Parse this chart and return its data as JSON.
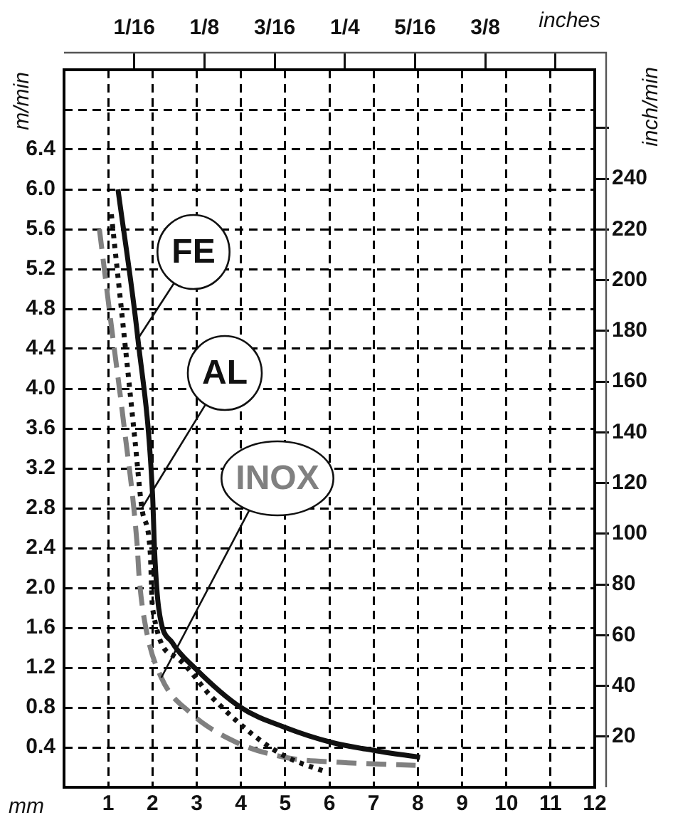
{
  "chart_data": {
    "type": "line",
    "xlabel": "mm",
    "ylabel": "m/min",
    "y2label": "inch/min",
    "x2label": "inches",
    "xlim": [
      0,
      12
    ],
    "xticks": [
      1,
      2,
      3,
      4,
      5,
      6,
      7,
      8,
      9,
      10,
      11,
      12
    ],
    "ylim": [
      0,
      7.2
    ],
    "yticks": [
      0.4,
      0.8,
      1.2,
      1.6,
      {
        "value": 2.0,
        "label": "2.0"
      },
      2.4,
      2.8,
      3.2,
      3.6,
      {
        "value": 4.0,
        "label": "4.0"
      },
      4.4,
      4.8,
      5.2,
      5.6,
      {
        "value": 6.0,
        "label": "6.0"
      },
      6.4,
      {
        "value": 6.8,
        "label": null
      }
    ],
    "y2lim": [
      0,
      283
    ],
    "y2ticks": [
      20,
      40,
      60,
      80,
      100,
      120,
      140,
      160,
      180,
      200,
      220,
      240,
      {
        "value": 260,
        "label": null
      }
    ],
    "x2lim": [
      0,
      0.4724
    ],
    "x2ticks": [
      {
        "value": 0.0625,
        "label": "1/16"
      },
      {
        "value": 0.125,
        "label": "1/8"
      },
      {
        "value": 0.1875,
        "label": "3/16"
      },
      {
        "value": 0.25,
        "label": "1/4"
      },
      {
        "value": 0.3125,
        "label": "5/16"
      },
      {
        "value": 0.375,
        "label": "3/8"
      },
      {
        "value": 0.4375,
        "label": null
      }
    ],
    "grid": true,
    "legend": false,
    "marker": "none",
    "series": [
      {
        "name": "FE",
        "color": "#111111",
        "line_style": "solid",
        "x": [
          1.22,
          1.67,
          2.0,
          2.05,
          2.14,
          2.45,
          2.95,
          4.0,
          5.0,
          6.05,
          7.0,
          8.05
        ],
        "values": [
          6.0,
          4.5,
          2.95,
          2.35,
          1.8,
          1.45,
          1.2,
          0.8,
          0.6,
          0.45,
          0.37,
          0.3
        ]
      },
      {
        "name": "AL",
        "color": "#111111",
        "line_style": "dotted",
        "x": [
          1.07,
          1.32,
          1.6,
          1.76,
          1.95,
          2.0,
          2.55,
          3.35,
          4.35,
          5.05,
          5.95
        ],
        "values": [
          5.75,
          4.7,
          3.5,
          2.8,
          2.35,
          1.8,
          1.3,
          0.9,
          0.5,
          0.3,
          0.15
        ]
      },
      {
        "name": "INOX",
        "color": "#808080",
        "line_style": "dashed",
        "x": [
          0.8,
          1.05,
          1.35,
          1.65,
          1.7,
          1.85,
          2.2,
          2.85,
          3.9,
          5.0,
          6.25,
          7.95
        ],
        "values": [
          5.6,
          4.7,
          3.65,
          2.45,
          2.1,
          1.6,
          1.1,
          0.75,
          0.45,
          0.3,
          0.25,
          0.22
        ]
      }
    ]
  }
}
